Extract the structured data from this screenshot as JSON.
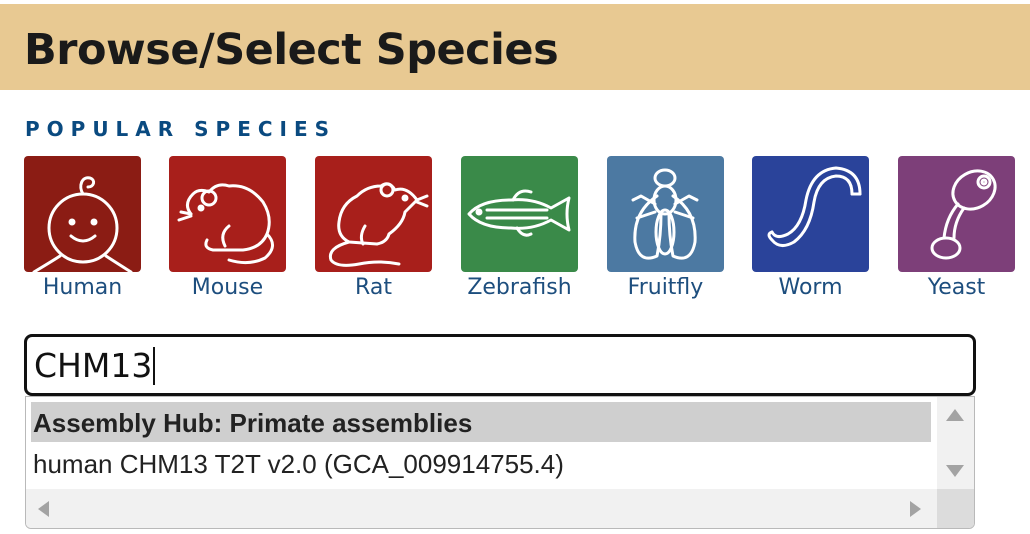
{
  "page": {
    "title": "Browse/Select Species",
    "popular_heading": "POPULAR SPECIES"
  },
  "species": [
    {
      "label": "Human",
      "color": "#8b1c14",
      "icon": "human-icon"
    },
    {
      "label": "Mouse",
      "color": "#a81f1b",
      "icon": "mouse-icon"
    },
    {
      "label": "Rat",
      "color": "#a81f1b",
      "icon": "rat-icon"
    },
    {
      "label": "Zebrafish",
      "color": "#3a8a49",
      "icon": "zebrafish-icon"
    },
    {
      "label": "Fruitfly",
      "color": "#4c79a2",
      "icon": "fruitfly-icon"
    },
    {
      "label": "Worm",
      "color": "#2a439a",
      "icon": "worm-icon"
    },
    {
      "label": "Yeast",
      "color": "#7d3f79",
      "icon": "yeast-icon"
    }
  ],
  "search": {
    "value": "CHM13"
  },
  "autocomplete": {
    "group_header": "Assembly Hub: Primate assemblies",
    "options": [
      "human CHM13 T2T v2.0 (GCA_009914755.4)"
    ]
  },
  "colors": {
    "title_bar": "#e8c992",
    "heading": "#0a4a80",
    "link": "#1d4e7e"
  }
}
